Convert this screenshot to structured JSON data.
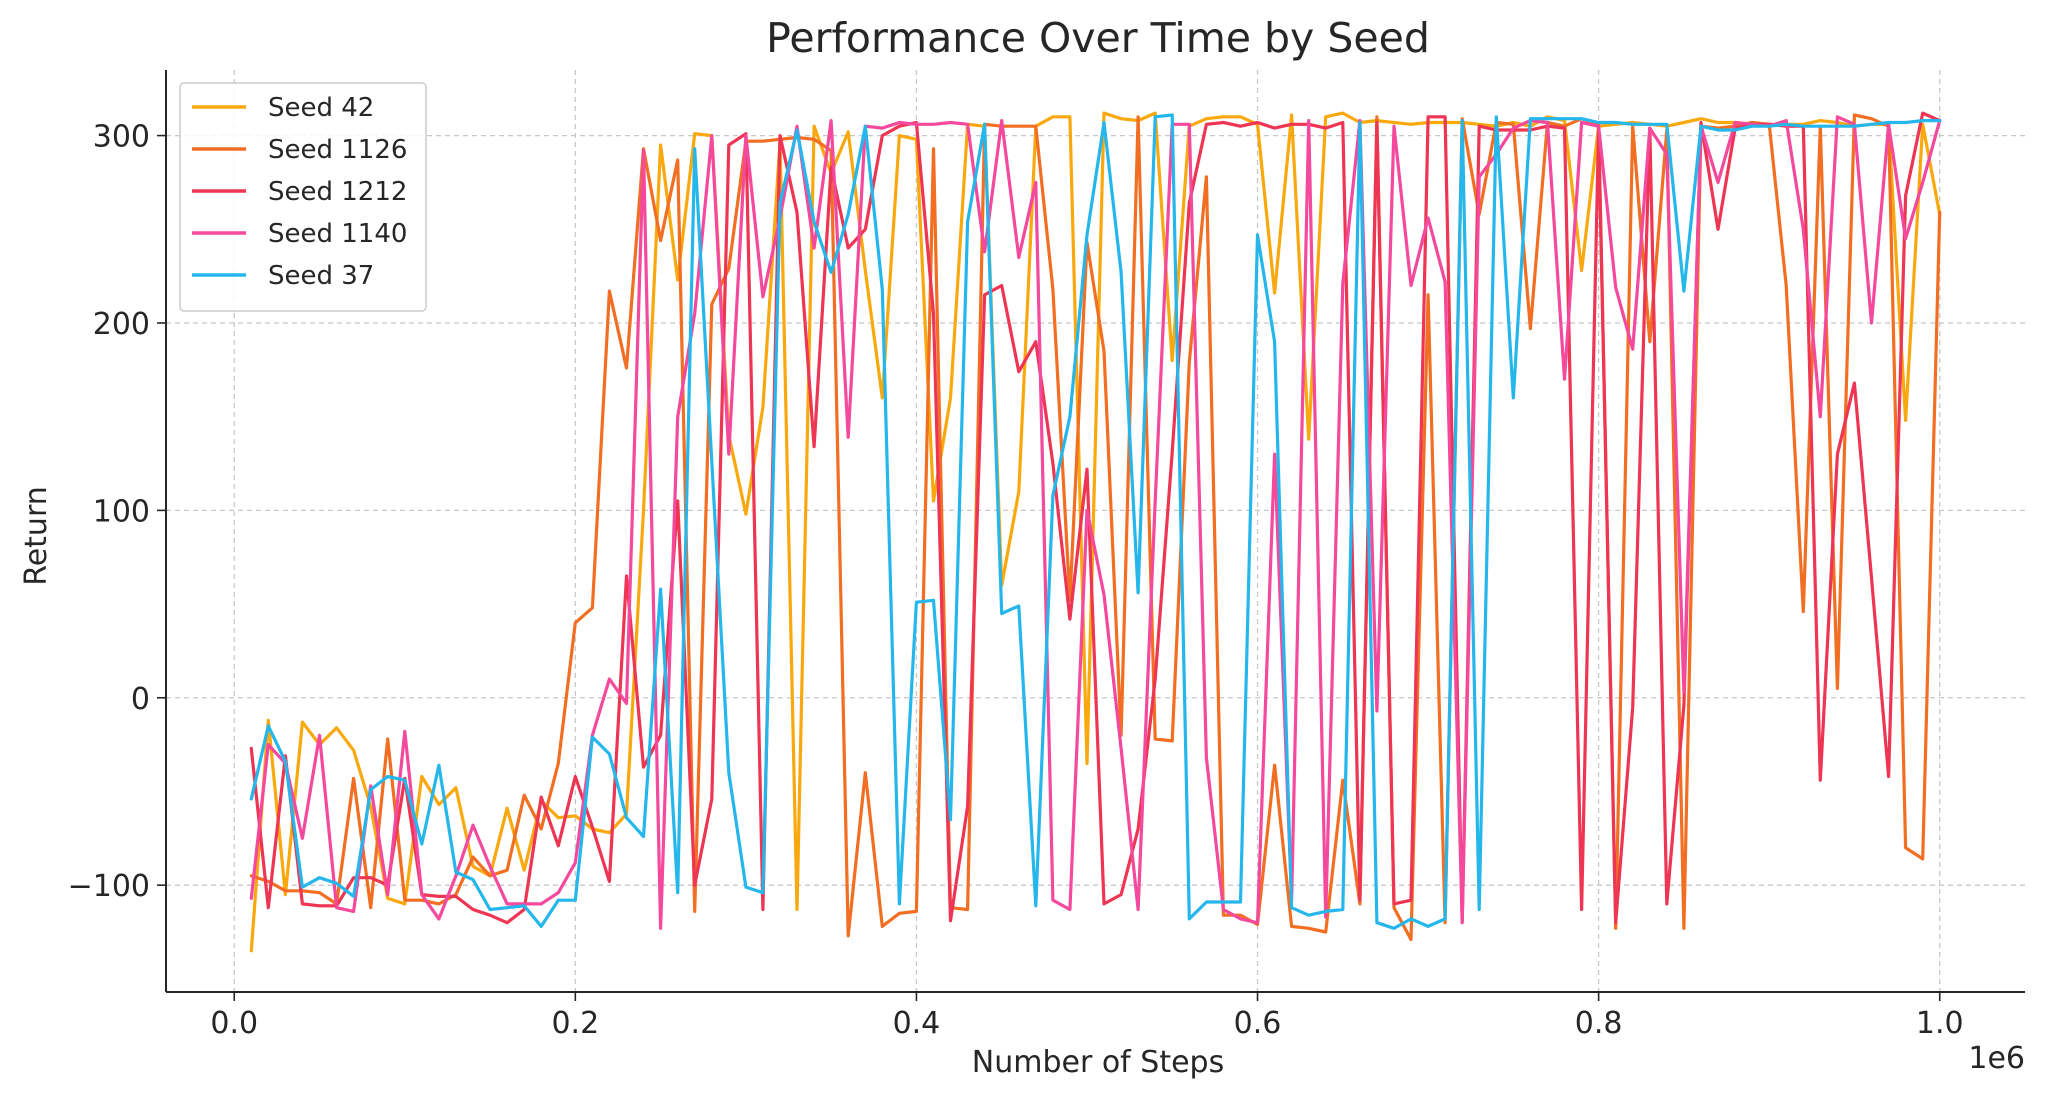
{
  "chart_data": {
    "type": "line",
    "title": "Performance Over Time by Seed",
    "xlabel": "Number of Steps",
    "ylabel": "Return",
    "x_offset_text": "1e6",
    "xlim": [
      -0.04,
      1.05
    ],
    "ylim": [
      -157,
      335
    ],
    "x_ticks": [
      0.0,
      0.2,
      0.4,
      0.6,
      0.8,
      1.0
    ],
    "x_tick_labels": [
      "0.0",
      "0.2",
      "0.4",
      "0.6",
      "0.8",
      "1.0"
    ],
    "y_ticks": [
      -100,
      0,
      100,
      200,
      300
    ],
    "y_tick_labels": [
      "−100",
      "0",
      "100",
      "200",
      "300"
    ],
    "grid": true,
    "legend_position": "top-left",
    "x": [
      0.01,
      0.02,
      0.03,
      0.04,
      0.05,
      0.06,
      0.07,
      0.08,
      0.09,
      0.1,
      0.11,
      0.12,
      0.13,
      0.14,
      0.15,
      0.16,
      0.17,
      0.18,
      0.19,
      0.2,
      0.21,
      0.22,
      0.23,
      0.24,
      0.25,
      0.26,
      0.27,
      0.28,
      0.29,
      0.3,
      0.31,
      0.32,
      0.33,
      0.34,
      0.35,
      0.36,
      0.37,
      0.38,
      0.39,
      0.4,
      0.41,
      0.42,
      0.43,
      0.44,
      0.45,
      0.46,
      0.47,
      0.48,
      0.49,
      0.5,
      0.51,
      0.52,
      0.53,
      0.54,
      0.55,
      0.56,
      0.57,
      0.58,
      0.59,
      0.6,
      0.61,
      0.62,
      0.63,
      0.64,
      0.65,
      0.66,
      0.67,
      0.68,
      0.69,
      0.7,
      0.71,
      0.72,
      0.73,
      0.74,
      0.75,
      0.76,
      0.77,
      0.78,
      0.79,
      0.8,
      0.81,
      0.82,
      0.83,
      0.84,
      0.85,
      0.86,
      0.87,
      0.88,
      0.89,
      0.9,
      0.91,
      0.92,
      0.93,
      0.94,
      0.95,
      0.96,
      0.97,
      0.98,
      0.99,
      1.0
    ],
    "series": [
      {
        "name": "Seed 42",
        "color": "#F9A80E",
        "values": [
          -135,
          -12,
          -105,
          -13,
          -25,
          -16,
          -28,
          -58,
          -107,
          -110,
          -42,
          -57,
          -48,
          -90,
          -95,
          -59,
          -92,
          -55,
          -64,
          -63,
          -70,
          -72,
          -62,
          100,
          295,
          223,
          301,
          300,
          140,
          98,
          155,
          297,
          -113,
          305,
          280,
          302,
          228,
          160,
          300,
          298,
          105,
          160,
          306,
          305,
          60,
          110,
          305,
          310,
          310,
          -35,
          312,
          309,
          308,
          312,
          180,
          305,
          309,
          310,
          310,
          306,
          216,
          311,
          138,
          310,
          312,
          307,
          308,
          307,
          306,
          307,
          307,
          307,
          306,
          305,
          307,
          305,
          310,
          308,
          228,
          305,
          306,
          307,
          306,
          305,
          307,
          309,
          307,
          307,
          306,
          306,
          306,
          306,
          308,
          307,
          305,
          306,
          306,
          148,
          306,
          258
        ]
      },
      {
        "name": "Seed 1126",
        "color": "#F26E22",
        "values": [
          -95,
          -98,
          -103,
          -103,
          -104,
          -110,
          -43,
          -112,
          -22,
          -108,
          -108,
          -110,
          -105,
          -85,
          -95,
          -92,
          -52,
          -70,
          -35,
          40,
          48,
          217,
          176,
          293,
          244,
          287,
          -114,
          210,
          229,
          297,
          297,
          298,
          299,
          298,
          292,
          -127,
          -40,
          -122,
          -115,
          -114,
          293,
          -112,
          -113,
          306,
          305,
          305,
          305,
          218,
          52,
          243,
          185,
          -20,
          310,
          -22,
          -23,
          179,
          278,
          -116,
          -116,
          -121,
          -36,
          -122,
          -123,
          -125,
          -44,
          -110,
          310,
          -112,
          -129,
          215,
          -120,
          309,
          258,
          307,
          306,
          197,
          307,
          305,
          309,
          306,
          -123,
          305,
          190,
          303,
          -123,
          305,
          304,
          305,
          307,
          306,
          220,
          46,
          305,
          5,
          311,
          309,
          305,
          -80,
          -86,
          259
        ]
      },
      {
        "name": "Seed 1212",
        "color": "#EE3553",
        "values": [
          -27,
          -112,
          -31,
          -110,
          -111,
          -111,
          -96,
          -96,
          -100,
          -43,
          -105,
          -106,
          -106,
          -113,
          -116,
          -120,
          -113,
          -53,
          -79,
          -42,
          -69,
          -98,
          65,
          -37,
          -20,
          105,
          -100,
          -54,
          295,
          301,
          -113,
          300,
          259,
          134,
          283,
          240,
          250,
          300,
          305,
          307,
          205,
          -119,
          -58,
          215,
          220,
          174,
          190,
          125,
          42,
          122,
          -110,
          -105,
          -70,
          10,
          131,
          264,
          306,
          307,
          305,
          307,
          304,
          306,
          306,
          304,
          307,
          -108,
          307,
          -110,
          -108,
          310,
          310,
          -119,
          305,
          303,
          303,
          303,
          305,
          304,
          -113,
          304,
          -120,
          -5,
          304,
          -110,
          -4,
          307,
          250,
          304,
          306,
          306,
          305,
          305,
          -44,
          130,
          168,
          64,
          -42,
          268,
          312,
          308
        ]
      },
      {
        "name": "Seed 1140",
        "color": "#F4499D",
        "values": [
          -107,
          -25,
          -35,
          -75,
          -20,
          -112,
          -114,
          -47,
          -105,
          -18,
          -105,
          -118,
          -95,
          -68,
          -90,
          -110,
          -110,
          -110,
          -104,
          -88,
          -20,
          10,
          -3,
          292,
          -123,
          150,
          205,
          300,
          130,
          300,
          214,
          256,
          305,
          240,
          308,
          139,
          305,
          304,
          307,
          306,
          306,
          307,
          306,
          238,
          308,
          235,
          275,
          -108,
          -113,
          100,
          55,
          -27,
          -113,
          105,
          306,
          306,
          -32,
          -113,
          -118,
          -120,
          130,
          -108,
          308,
          -117,
          221,
          308,
          -7,
          305,
          220,
          256,
          222,
          -120,
          278,
          290,
          304,
          308,
          307,
          170,
          307,
          305,
          219,
          186,
          304,
          290,
          3,
          305,
          275,
          307,
          306,
          305,
          308,
          250,
          150,
          310,
          306,
          200,
          306,
          245,
          275,
          308
        ]
      },
      {
        "name": "Seed 37",
        "color": "#25B7EC",
        "values": [
          -54,
          -15,
          -34,
          -101,
          -96,
          -99,
          -106,
          -49,
          -42,
          -44,
          -78,
          -36,
          -93,
          -97,
          -113,
          -112,
          -111,
          -122,
          -108,
          -108,
          -21,
          -30,
          -64,
          -74,
          58,
          -104,
          293,
          126,
          -40,
          -101,
          -104,
          264,
          303,
          254,
          227,
          258,
          305,
          218,
          -110,
          51,
          52,
          -65,
          254,
          306,
          45,
          49,
          -111,
          108,
          150,
          247,
          307,
          227,
          56,
          310,
          311,
          -118,
          -109,
          -109,
          -109,
          247,
          190,
          -112,
          -116,
          -114,
          -113,
          307,
          -120,
          -123,
          -118,
          -122,
          -118,
          308,
          -113,
          310,
          160,
          309,
          309,
          309,
          309,
          307,
          307,
          306,
          306,
          306,
          217,
          305,
          303,
          303,
          305,
          305,
          306,
          305,
          305,
          305,
          305,
          306,
          307,
          307,
          308,
          308
        ]
      }
    ]
  }
}
